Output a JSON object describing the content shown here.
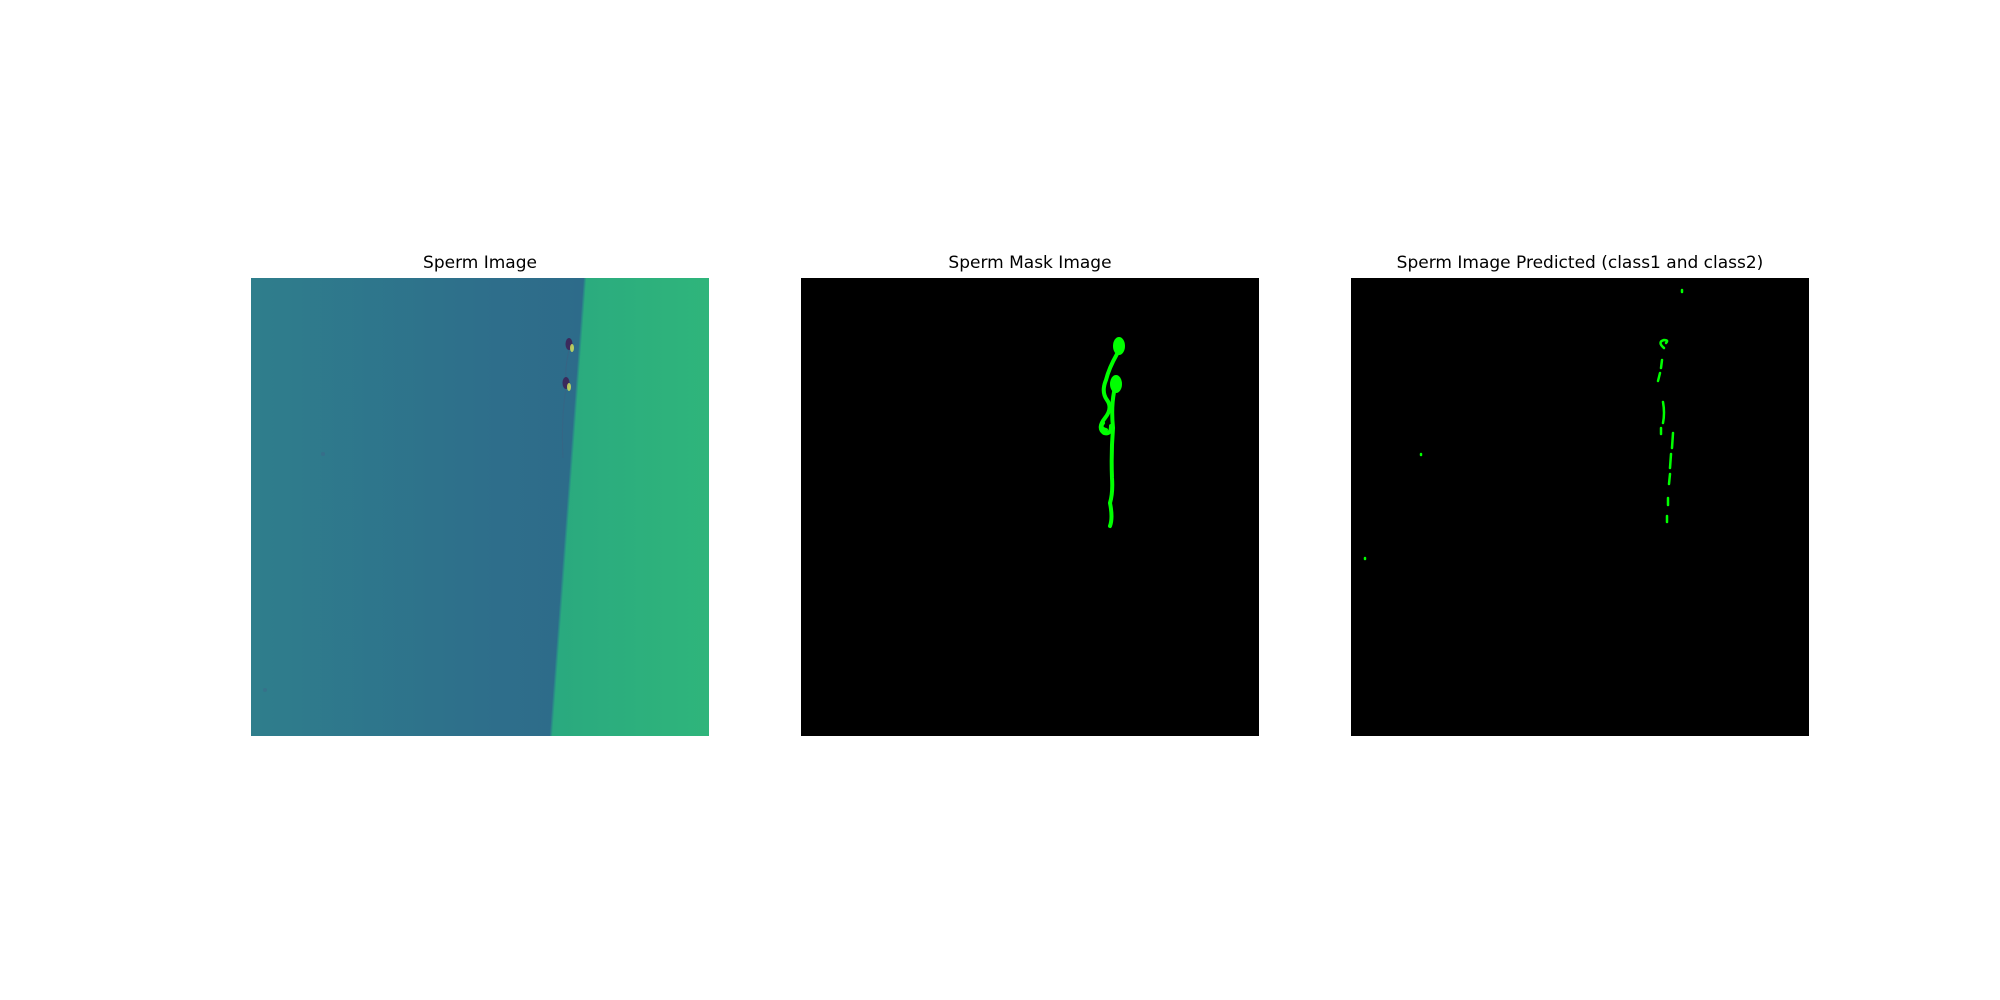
{
  "figure": {
    "panels": [
      {
        "title": "Sperm Image",
        "image": "microscopy-frame",
        "colors": {
          "background_left": "#2e6d8a",
          "background_right": "#2db27d",
          "sperm_head": "#3b2a5c"
        }
      },
      {
        "title": "Sperm Mask Image",
        "image": "ground-truth-mask",
        "colors": {
          "background": "#000000",
          "mask": "#00ff00"
        }
      },
      {
        "title": "Sperm Image Predicted (class1 and class2)",
        "image": "predicted-mask",
        "colors": {
          "background": "#000000",
          "mask": "#00ff00"
        }
      }
    ]
  }
}
